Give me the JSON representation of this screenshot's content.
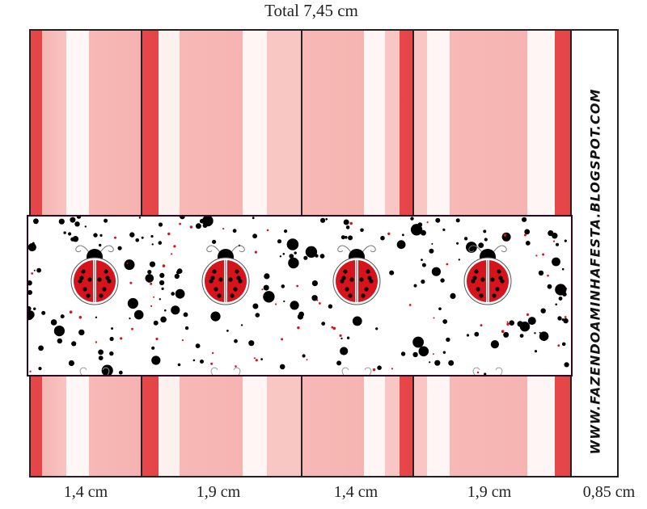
{
  "total_label": "Total 7,45 cm",
  "dimensions": [
    "1,4 cm",
    "1,9 cm",
    "1,4 cm",
    "1,9 cm",
    "0,85 cm"
  ],
  "website": "WWW.FAZENDOAMINHAFESTA.BLOGSPOT.COM",
  "colors": {
    "stripe_red": "#e24547",
    "stripe_pink": "#f6b4b1",
    "stripe_white": "#fff5f4",
    "ladybug_red": "#d7141b",
    "dot_black": "#000000",
    "dot_red": "#d7141b",
    "band_border": "#2a0822"
  },
  "ladybug_count": 4
}
